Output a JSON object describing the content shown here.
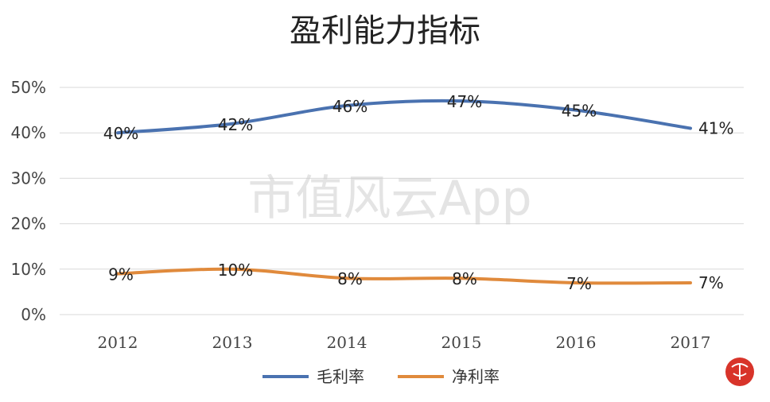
{
  "chart_data": {
    "type": "line",
    "title": "盈利能力指标",
    "categories": [
      "2012",
      "2013",
      "2014",
      "2015",
      "2016",
      "2017"
    ],
    "yticks": [
      "0%",
      "10%",
      "20%",
      "30%",
      "40%",
      "50%"
    ],
    "ylim": [
      0,
      50
    ],
    "grid": true,
    "legend_position": "bottom",
    "series": [
      {
        "name": "毛利率",
        "color": "#4a72b0",
        "values": [
          40,
          42,
          46,
          47,
          45,
          41
        ],
        "labels": [
          "40%",
          "42%",
          "46%",
          "47%",
          "45%",
          "41%"
        ]
      },
      {
        "name": "净利率",
        "color": "#e08a3c",
        "values": [
          9,
          10,
          8,
          8,
          7,
          7
        ],
        "labels": [
          "9%",
          "10%",
          "8%",
          "8%",
          "7%",
          "7%"
        ]
      }
    ]
  },
  "watermark": {
    "text": "市值风云App"
  }
}
